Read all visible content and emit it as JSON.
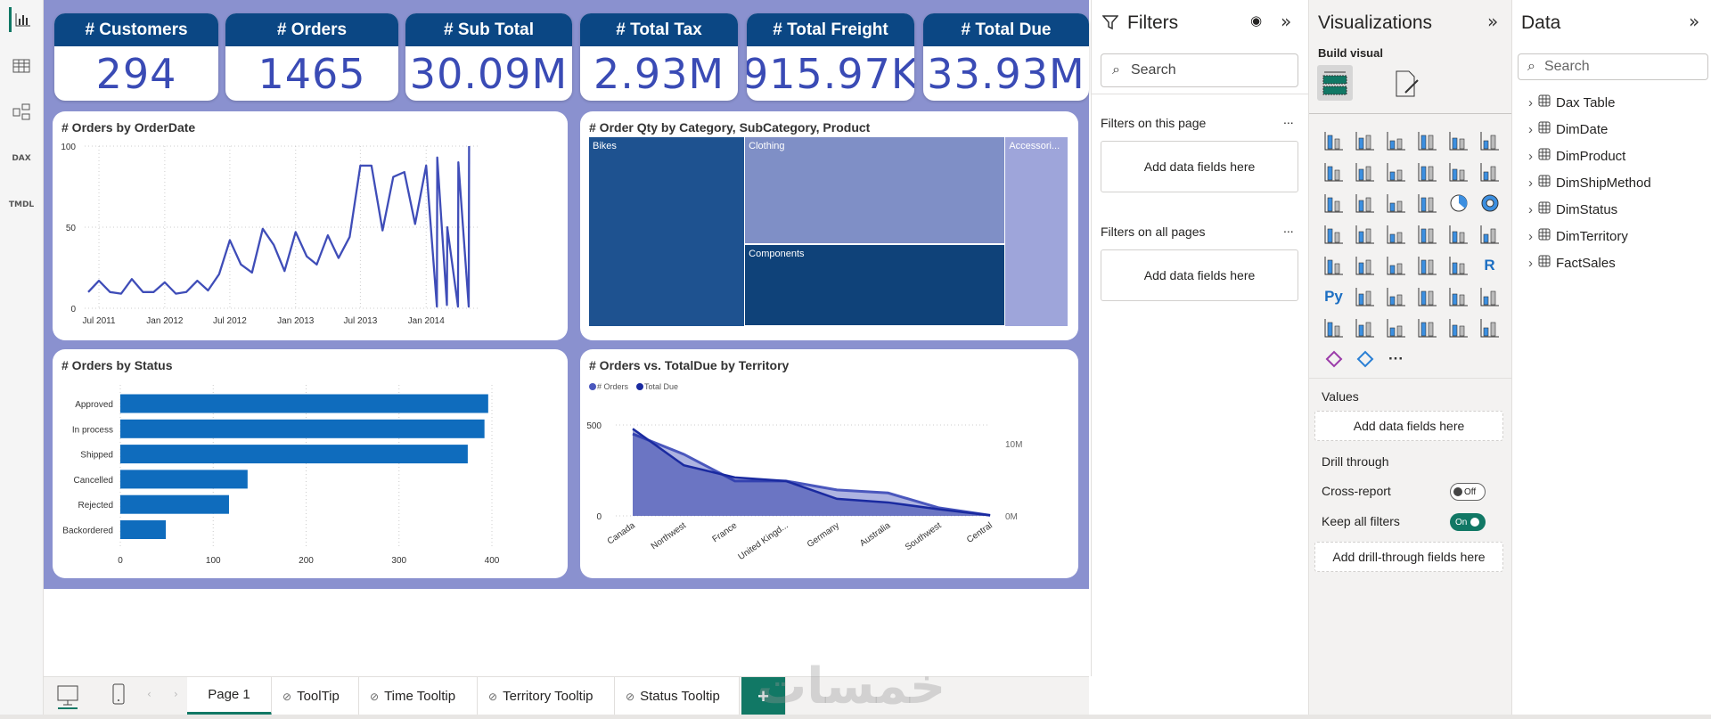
{
  "rail": {
    "items": [
      {
        "name": "report-view"
      },
      {
        "name": "table-view"
      },
      {
        "name": "model-view"
      },
      {
        "name": "dax-query-view",
        "label": "DAX"
      },
      {
        "name": "tmdl-view",
        "label": "TMDL"
      }
    ]
  },
  "kpis": [
    {
      "title": "# Customers",
      "value": "294"
    },
    {
      "title": "# Orders",
      "value": "1465"
    },
    {
      "title": "# Sub Total",
      "value": "30.09M"
    },
    {
      "title": "# Total Tax",
      "value": "2.93M"
    },
    {
      "title": "# Total Freight",
      "value": "915.97K"
    },
    {
      "title": "# Total Due",
      "value": "33.93M"
    }
  ],
  "colors": {
    "report_bg": "#8a91cf",
    "kpi_header": "#0b4784",
    "kpi_value": "#3a4bb5",
    "line": "#3f4db8",
    "bar": "#0f6cbd",
    "accent_green": "#117865"
  },
  "chart_data": [
    {
      "type": "line",
      "title": "# Orders by OrderDate",
      "ylim": [
        0,
        100
      ],
      "yticks": [
        "0",
        "50",
        "100"
      ],
      "xticks": [
        {
          "label": "Jul 2011",
          "date": "2011-07-01"
        },
        {
          "label": "Jan 2012",
          "date": "2012-01-01"
        },
        {
          "label": "Jul 2012",
          "date": "2012-07-01"
        },
        {
          "label": "Jan 2013",
          "date": "2013-01-01"
        },
        {
          "label": "Jul 2013",
          "date": "2013-07-01"
        },
        {
          "label": "Jan 2014",
          "date": "2014-01-01"
        }
      ],
      "xlim": [
        "2011-06-01",
        "2014-05-15"
      ],
      "grid": true,
      "points": [
        [
          "2011-06-01",
          10
        ],
        [
          "2011-07-01",
          17
        ],
        [
          "2011-08-01",
          10
        ],
        [
          "2011-09-01",
          9
        ],
        [
          "2011-10-01",
          18
        ],
        [
          "2011-11-01",
          10
        ],
        [
          "2011-12-01",
          10
        ],
        [
          "2012-01-01",
          16
        ],
        [
          "2012-02-01",
          9
        ],
        [
          "2012-03-01",
          10
        ],
        [
          "2012-04-01",
          17
        ],
        [
          "2012-05-01",
          11
        ],
        [
          "2012-06-01",
          21
        ],
        [
          "2012-07-01",
          42
        ],
        [
          "2012-08-01",
          27
        ],
        [
          "2012-09-01",
          22
        ],
        [
          "2012-10-01",
          49
        ],
        [
          "2012-11-01",
          39
        ],
        [
          "2012-12-01",
          23
        ],
        [
          "2013-01-01",
          47
        ],
        [
          "2013-02-01",
          32
        ],
        [
          "2013-03-01",
          27
        ],
        [
          "2013-04-01",
          45
        ],
        [
          "2013-05-01",
          31
        ],
        [
          "2013-06-01",
          44
        ],
        [
          "2013-07-01",
          88
        ],
        [
          "2013-08-01",
          88
        ],
        [
          "2013-09-01",
          48
        ],
        [
          "2013-10-01",
          81
        ],
        [
          "2013-11-01",
          84
        ],
        [
          "2013-12-01",
          52
        ],
        [
          "2014-01-01",
          88
        ],
        [
          "2014-01-31",
          1
        ],
        [
          "2014-02-01",
          93
        ],
        [
          "2014-02-28",
          2
        ],
        [
          "2014-03-01",
          50
        ],
        [
          "2014-03-31",
          1
        ],
        [
          "2014-04-01",
          90
        ],
        [
          "2014-04-30",
          1
        ],
        [
          "2014-05-01",
          100
        ]
      ]
    },
    {
      "type": "treemap",
      "title": "# Order Qty by Category, SubCategory, Product",
      "items": [
        {
          "label": "Bikes",
          "share": 32.5,
          "color": "#1e5290"
        },
        {
          "label": "Clothing",
          "share": 30.7,
          "color": "#7f8fc6"
        },
        {
          "label": "Components",
          "share": 23.5,
          "color": "#0f4279"
        },
        {
          "label": "Accessori...",
          "share": 13.3,
          "color": "#9ea5da"
        }
      ]
    },
    {
      "type": "bar",
      "title": "# Orders by Status",
      "categories": [
        "Approved",
        "In process",
        "Shipped",
        "Cancelled",
        "Rejected",
        "Backordered"
      ],
      "values": [
        396,
        392,
        374,
        137,
        117,
        49
      ],
      "xlim": [
        0,
        400
      ],
      "xticks": [
        "0",
        "100",
        "200",
        "300",
        "400"
      ],
      "grid": true
    },
    {
      "type": "area",
      "title": "# Orders vs. TotalDue by Territory",
      "categories": [
        "Canada",
        "Northwest",
        "France",
        "United Kingd...",
        "Germany",
        "Australia",
        "Southwest",
        "Central"
      ],
      "legend": "top-left",
      "series": [
        {
          "name": "# Orders",
          "axis": "left",
          "color": "#4a57bd",
          "values": [
            451,
            339,
            192,
            192,
            143,
            126,
            44,
            3
          ]
        },
        {
          "name": "Total Due",
          "axis": "right",
          "color": "#1a2aa0",
          "values": [
            12070000,
            7020000,
            5330000,
            4830000,
            2360000,
            1860000,
            910000,
            80000
          ]
        }
      ],
      "ylim_left": [
        0,
        500
      ],
      "yticks_left": [
        "0",
        "500"
      ],
      "ylim_right": [
        0,
        12600000
      ],
      "yticks_right": [
        {
          "label": "0M",
          "value": 0
        },
        {
          "label": "10M",
          "value": 10000000
        }
      ]
    }
  ],
  "filters": {
    "title": "Filters",
    "search_placeholder": "Search",
    "on_this_page": "Filters on this page",
    "on_all_pages": "Filters on all pages",
    "add_fields": "Add data fields here",
    "more": "..."
  },
  "viz": {
    "title": "Visualizations",
    "build_visual": "Build visual",
    "values_label": "Values",
    "add_fields": "Add data fields here",
    "drill_through": "Drill through",
    "cross_report": "Cross-report",
    "cross_report_state": "Off",
    "keep_filters": "Keep all filters",
    "keep_filters_state": "On",
    "add_drill": "Add drill-through fields here",
    "icons": [
      "stacked-bar",
      "stacked-column",
      "clustered-bar",
      "clustered-column",
      "100-stacked-bar",
      "100-stacked-column",
      "line-chart",
      "area-chart",
      "stacked-area",
      "100-stacked-area",
      "line-stacked-column",
      "line-clustered-column",
      "ribbon-chart",
      "waterfall-chart",
      "funnel-chart",
      "scatter-chart",
      "pie-chart",
      "donut-chart",
      "treemap",
      "map",
      "filled-map",
      "azure-map",
      "gauge",
      "card",
      "multi-row-card",
      "kpi",
      "slicer",
      "table",
      "matrix",
      "r-visual",
      "python-visual",
      "key-influencers",
      "decomposition-tree",
      "qa",
      "smart-narrative",
      "metrics",
      "paginated-report",
      "card-new",
      "slicer-new",
      "button-slicer",
      "list-slicer",
      "arcgis-map",
      "power-apps",
      "power-automate",
      "more"
    ],
    "r_label": "R",
    "py_label": "Py",
    "more_label": "···"
  },
  "data": {
    "title": "Data",
    "search_placeholder": "Search",
    "tables": [
      "Dax Table",
      "DimDate",
      "DimProduct",
      "DimShipMethod",
      "DimStatus",
      "DimTerritory",
      "FactSales"
    ]
  },
  "tabs": {
    "pages": [
      "Page 1",
      "ToolTip",
      "Time Tooltip",
      "Territory Tooltip",
      "Status Tooltip"
    ],
    "active": "Page 1",
    "add": "+"
  },
  "watermark": "خمسات"
}
